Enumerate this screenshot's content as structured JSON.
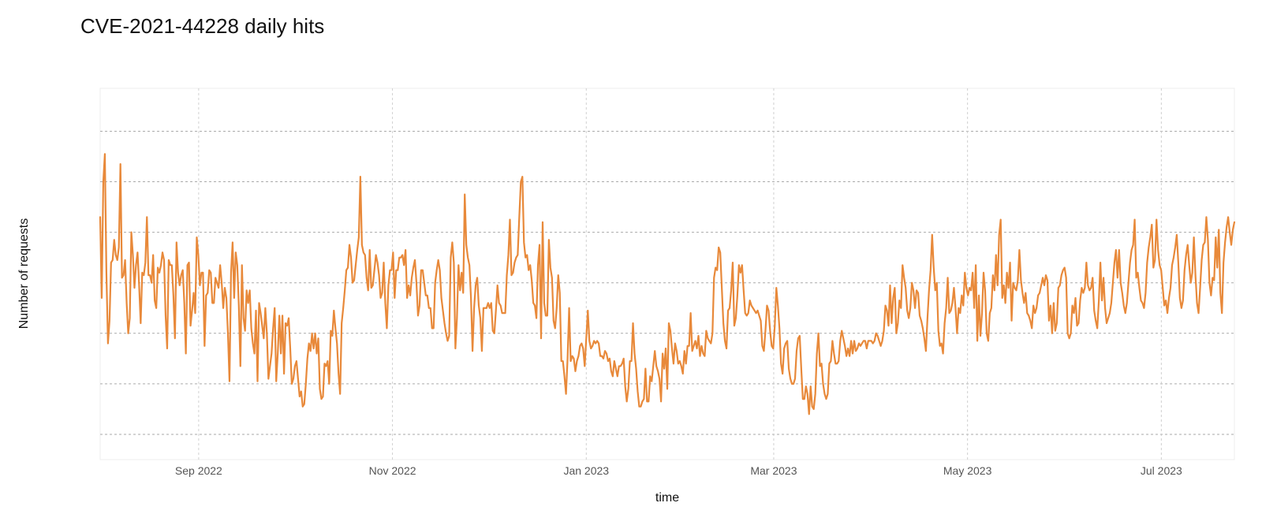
{
  "chart_data": {
    "type": "line",
    "title": "CVE-2021-44228 daily hits",
    "xlabel": "time",
    "ylabel": "Number of requests",
    "x_start": "2022-08-01",
    "x_end": "2023-07-24",
    "x_ticks": [
      {
        "date": "2022-09-01",
        "label": "Sep 2022"
      },
      {
        "date": "2022-11-01",
        "label": "Nov 2022"
      },
      {
        "date": "2023-01-01",
        "label": "Jan 2023"
      },
      {
        "date": "2023-03-01",
        "label": "Mar 2023"
      },
      {
        "date": "2023-05-01",
        "label": "May 2023"
      },
      {
        "date": "2023-07-01",
        "label": "Jul 2023"
      }
    ],
    "y_grid": [
      20,
      40,
      60,
      80,
      100,
      120,
      140
    ],
    "ylim": [
      10,
      157
    ],
    "y_tick_labels_visible": false,
    "grid": true,
    "line_color": "#E8893A",
    "series": [
      {
        "values": [
          106,
          74,
          120,
          131,
          84,
          56,
          65,
          88,
          89,
          97,
          91,
          89,
          94,
          127,
          82,
          83,
          89,
          72,
          60,
          66,
          100,
          91,
          78,
          87,
          92,
          79,
          64,
          84,
          83,
          88,
          106,
          83,
          83,
          80,
          91,
          73,
          70,
          86,
          84,
          87,
          92,
          89,
          67,
          54,
          89,
          87,
          87,
          75,
          58,
          96,
          84,
          79,
          83,
          85,
          72,
          52,
          87,
          88,
          63,
          69,
          76,
          68,
          98,
          91,
          79,
          84,
          84,
          55,
          75,
          76,
          85,
          84,
          72,
          72,
          82,
          80,
          78,
          87,
          80,
          70,
          78,
          74,
          60,
          41,
          84,
          96,
          74,
          92,
          87,
          71,
          47,
          87,
          66,
          61,
          77,
          72,
          77,
          62,
          56,
          52,
          69,
          41,
          72,
          68,
          63,
          58,
          70,
          60,
          42,
          47,
          52,
          62,
          70,
          41,
          52,
          67,
          52,
          67,
          44,
          64,
          63,
          66,
          54,
          40,
          42,
          47,
          49,
          42,
          35,
          37,
          31,
          32,
          40,
          50,
          56,
          53,
          60,
          54,
          60,
          52,
          58,
          38,
          34,
          35,
          48,
          47,
          49,
          40,
          61,
          59,
          69,
          62,
          56,
          44,
          36,
          64,
          70,
          77,
          85,
          86,
          95,
          90,
          80,
          81,
          87,
          93,
          98,
          122,
          95,
          92,
          91,
          82,
          77,
          93,
          78,
          79,
          85,
          91,
          88,
          83,
          74,
          76,
          88,
          72,
          62,
          79,
          85,
          85,
          92,
          74,
          85,
          85,
          90,
          90,
          91,
          87,
          93,
          74,
          79,
          75,
          82,
          86,
          89,
          80,
          67,
          71,
          85,
          85,
          80,
          75,
          75,
          70,
          70,
          62,
          62,
          80,
          85,
          89,
          85,
          74,
          69,
          64,
          60,
          57,
          59,
          90,
          96,
          88,
          54,
          66,
          87,
          77,
          84,
          76,
          115,
          95,
          90,
          87,
          74,
          53,
          70,
          79,
          82,
          71,
          66,
          53,
          70,
          70,
          70,
          72,
          70,
          72,
          61,
          60,
          69,
          79,
          72,
          71,
          68,
          68,
          68,
          83,
          91,
          105,
          83,
          84,
          88,
          90,
          91,
          106,
          120,
          122,
          96,
          90,
          91,
          85,
          87,
          81,
          72,
          71,
          66,
          87,
          95,
          58,
          104,
          72,
          67,
          67,
          97,
          86,
          82,
          65,
          62,
          70,
          83,
          76,
          49,
          49,
          43,
          36,
          50,
          70,
          49,
          51,
          50,
          45,
          49,
          51,
          55,
          56,
          54,
          47,
          58,
          69,
          57,
          54,
          55,
          57,
          56,
          57,
          56,
          51,
          51,
          50,
          53,
          52,
          49,
          50,
          45,
          43,
          49,
          46,
          43,
          47,
          47,
          48,
          50,
          39,
          33,
          38,
          49,
          49,
          64,
          52,
          46,
          37,
          31,
          31,
          33,
          34,
          46,
          33,
          33,
          43,
          41,
          47,
          53,
          47,
          45,
          42,
          33,
          52,
          46,
          54,
          38,
          64,
          61,
          54,
          48,
          56,
          53,
          48,
          49,
          47,
          44,
          53,
          48,
          55,
          55,
          68,
          53,
          55,
          57,
          54,
          59,
          51,
          55,
          52,
          51,
          61,
          58,
          57,
          56,
          60,
          82,
          86,
          85,
          94,
          92,
          78,
          64,
          57,
          54,
          69,
          70,
          77,
          88,
          63,
          66,
          75,
          87,
          84,
          87,
          77,
          68,
          67,
          68,
          73,
          71,
          70,
          69,
          68,
          69,
          67,
          65,
          55,
          53,
          61,
          71,
          69,
          61,
          55,
          54,
          63,
          78,
          71,
          62,
          48,
          44,
          54,
          56,
          57,
          46,
          42,
          40,
          40,
          42,
          53,
          58,
          59,
          46,
          34,
          34,
          39,
          36,
          28,
          39,
          31,
          30,
          36,
          52,
          60,
          47,
          48,
          40,
          36,
          34,
          36,
          48,
          49,
          57,
          52,
          48,
          48,
          49,
          57,
          61,
          58,
          55,
          51,
          54,
          51,
          57,
          52,
          57,
          53,
          54,
          56,
          55,
          56,
          57,
          57,
          54,
          57,
          57,
          57,
          56,
          57,
          60,
          59,
          57,
          55,
          57,
          61,
          71,
          69,
          63,
          79,
          64,
          74,
          78,
          60,
          64,
          73,
          70,
          87,
          82,
          78,
          69,
          66,
          70,
          80,
          77,
          70,
          77,
          76,
          67,
          65,
          62,
          58,
          53,
          66,
          77,
          85,
          99,
          86,
          77,
          80,
          61,
          55,
          56,
          52,
          64,
          70,
          82,
          68,
          69,
          72,
          78,
          70,
          60,
          70,
          68,
          75,
          71,
          84,
          78,
          75,
          78,
          77,
          84,
          70,
          87,
          57,
          75,
          59,
          68,
          84,
          77,
          60,
          57,
          68,
          70,
          83,
          77,
          91,
          79,
          99,
          105,
          74,
          79,
          72,
          84,
          78,
          88,
          65,
          80,
          78,
          77,
          81,
          93,
          81,
          76,
          72,
          76,
          68,
          67,
          65,
          62,
          71,
          68,
          70,
          75,
          76,
          79,
          82,
          79,
          83,
          81,
          65,
          71,
          60,
          72,
          61,
          64,
          78,
          79,
          83,
          85,
          86,
          82,
          60,
          58,
          60,
          71,
          68,
          74,
          63,
          64,
          73,
          78,
          76,
          78,
          88,
          79,
          77,
          78,
          82,
          69,
          65,
          62,
          73,
          88,
          73,
          82,
          70,
          64,
          66,
          68,
          72,
          80,
          88,
          93,
          82,
          93,
          80,
          76,
          71,
          68,
          72,
          80,
          88,
          93,
          95,
          105,
          82,
          84,
          78,
          73,
          72,
          70,
          76,
          88,
          94,
          98,
          103,
          86,
          89,
          105,
          93,
          87,
          85,
          78,
          71,
          73,
          68,
          74,
          78,
          87,
          90,
          94,
          99,
          88,
          74,
          70,
          73,
          85,
          91,
          95,
          87,
          80,
          84,
          98,
          83,
          72,
          68,
          78,
          89,
          95,
          96,
          106,
          97,
          80,
          75,
          82,
          81,
          98,
          86,
          101,
          76,
          68,
          88,
          96,
          102,
          106,
          100,
          95,
          101,
          104
        ]
      }
    ]
  }
}
